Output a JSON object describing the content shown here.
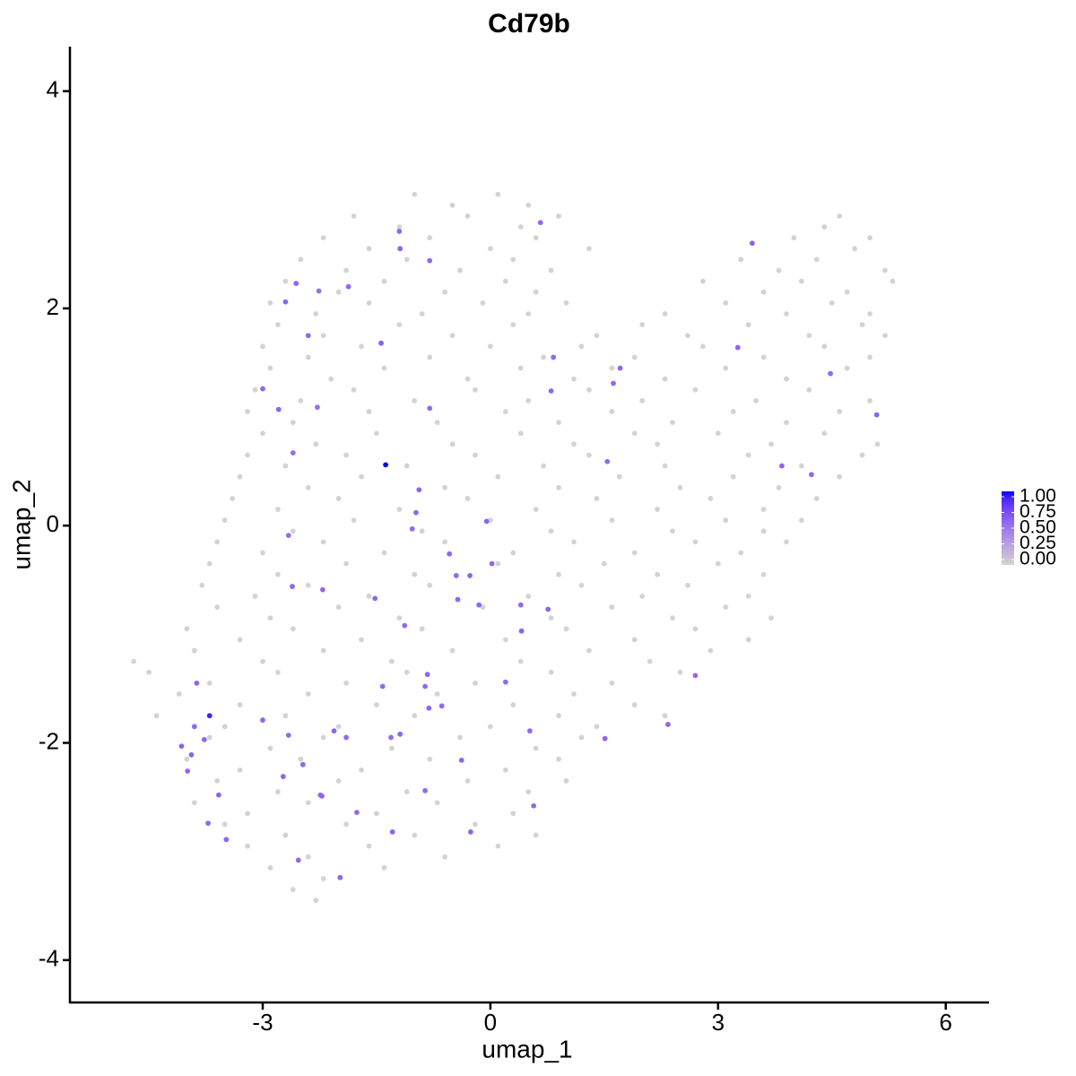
{
  "chart_data": {
    "type": "scatter",
    "title": "Cd79b",
    "x_label": "umap_1",
    "y_label": "umap_2",
    "xlim": [
      -5.54,
      6.57
    ],
    "ylim": [
      -4.39,
      4.41
    ],
    "xticks": [
      -3,
      0,
      3,
      6
    ],
    "yticks": [
      -4,
      -2,
      0,
      2,
      4
    ],
    "colors": [
      "#d3d3d3",
      "#0000ff"
    ],
    "colorlim": [
      0,
      1
    ],
    "colorbar_ticks": [
      {
        "value": 0,
        "label": "0.00"
      },
      {
        "value": 0.25,
        "label": "0.25"
      },
      {
        "value": 0.5,
        "label": "0.50"
      },
      {
        "value": 0.75,
        "label": "0.75"
      },
      {
        "value": 1,
        "label": "1.00"
      }
    ],
    "legend": "right",
    "grid": false,
    "x": [
      -1.0,
      -0.5,
      0.1,
      0.5,
      -1.8,
      -1.2,
      -0.3,
      0.4,
      0.9,
      4.4,
      4.6,
      -2.2,
      -1.6,
      -0.8,
      0,
      0.6,
      1.3,
      4.0,
      4.8,
      5.0,
      -2.5,
      -1.9,
      -1.1,
      -0.4,
      0.3,
      0.8,
      3.3,
      3.8,
      4.3,
      5.2,
      -2.7,
      -2.0,
      -1.4,
      -0.6,
      0.2,
      0.6,
      2.8,
      3.6,
      4.1,
      4.7,
      5.3,
      -2.9,
      -2.3,
      -1.6,
      -0.9,
      -0.1,
      0.5,
      1.0,
      2.3,
      3.1,
      3.9,
      4.5,
      5.0,
      -2.8,
      -2.2,
      -1.2,
      -0.5,
      0.3,
      1.4,
      2.0,
      2.6,
      3.4,
      4.2,
      4.9,
      5.2,
      -3.0,
      -2.4,
      -1.7,
      -0.8,
      0,
      0.7,
      1.2,
      1.9,
      2.8,
      3.6,
      4.4,
      5.0,
      -2.9,
      -2.1,
      -1.4,
      -0.3,
      0.4,
      1.1,
      1.6,
      2.3,
      3.1,
      3.9,
      4.7,
      -3.1,
      -2.5,
      -1.8,
      -1.0,
      -0.2,
      0.5,
      1.3,
      2.0,
      2.7,
      3.5,
      4.2,
      5.0,
      -3.2,
      -2.6,
      -1.6,
      -0.7,
      0.2,
      0.9,
      1.6,
      2.4,
      3.2,
      3.9,
      4.6,
      -3.0,
      -2.3,
      -1.5,
      -0.5,
      0.4,
      1.1,
      1.9,
      2.2,
      3.0,
      3.7,
      4.4,
      5.1,
      -3.2,
      -2.7,
      -1.9,
      -1.1,
      -0.2,
      0.7,
      1.3,
      2.3,
      3.4,
      4.1,
      4.9,
      -3.3,
      -2.4,
      -1.7,
      -0.6,
      0.1,
      0.9,
      1.7,
      2.5,
      3.2,
      3.8,
      4.6,
      -3.4,
      -2.8,
      -2.0,
      -1.2,
      -0.3,
      0.6,
      1.4,
      2.2,
      2.9,
      3.6,
      4.3,
      -3.5,
      -2.6,
      -1.8,
      -0.9,
      0,
      0.8,
      1.6,
      2.4,
      3.1,
      3.6,
      4.1,
      -3.6,
      -3.0,
      -2.2,
      -1.4,
      -0.6,
      0.3,
      1.1,
      1.9,
      2.7,
      3.3,
      3.9,
      -3.7,
      -2.8,
      -1.9,
      -1.0,
      0.1,
      0.9,
      1.5,
      2.2,
      3.0,
      3.6,
      -3.8,
      -3.1,
      -2.4,
      -1.6,
      -0.8,
      0.5,
      1.2,
      2.0,
      2.6,
      3.4,
      -3.6,
      -2.9,
      -2.0,
      -1.2,
      -0.1,
      0.8,
      1.6,
      2.4,
      3.1,
      3.7,
      -4.0,
      -3.3,
      -2.6,
      -1.7,
      -0.9,
      0.2,
      1.0,
      1.9,
      2.7,
      3.4,
      -4.7,
      -3.9,
      -3.0,
      -2.2,
      -1.3,
      -0.5,
      0.4,
      1.3,
      2.1,
      2.9,
      -4.5,
      -3.7,
      -2.8,
      -1.9,
      -1.1,
      -0.2,
      0.8,
      1.6,
      2.5,
      -4.1,
      -3.3,
      -2.4,
      -1.5,
      -0.7,
      0.3,
      1.1,
      1.9,
      -4.4,
      -3.5,
      -2.7,
      -2.0,
      -1.0,
      0,
      0.9,
      1.4,
      2.3,
      -3.7,
      -2.9,
      -2.2,
      -1.3,
      -0.4,
      0.6,
      1.2,
      -4.0,
      -3.3,
      -2.5,
      -1.7,
      -0.8,
      0.2,
      0.9,
      -3.6,
      -2.8,
      -2.0,
      -1.1,
      -0.3,
      0.5,
      1.0,
      -3.9,
      -3.2,
      -2.4,
      -1.5,
      -0.7,
      0.3,
      -3.5,
      -2.7,
      -1.9,
      -1.0,
      -0.2,
      0.6,
      -3.2,
      -2.4,
      -1.6,
      -0.6,
      0.1,
      -2.9,
      -2.2,
      -1.4,
      -2.6,
      -2.3,
      -1.2,
      -1.19,
      -0.8,
      -2.56,
      -2.26,
      -1.87,
      -2.7,
      -2.4,
      -1.44,
      0.83,
      1.71,
      1.62,
      0.8,
      -3.0,
      -2.79,
      -2.28,
      -0.8,
      -2.6,
      -1.38,
      1.54,
      3.84,
      4.23,
      5.09,
      4.48,
      3.26,
      3.45,
      0.66,
      -0.94,
      -0.98,
      -1.03,
      -0.05,
      0.02,
      -0.54,
      -0.45,
      -0.27,
      -0.43,
      -0.15,
      0.4,
      0.76,
      0.41,
      -1.52,
      -1.13,
      -2.61,
      -2.21,
      -2.66,
      2.7,
      2.34,
      0.2,
      1.51,
      0.52,
      -0.38,
      -0.64,
      -0.83,
      -0.86,
      -0.81,
      -1.42,
      -1.19,
      -1.31,
      -2.06,
      -1.9,
      -3.0,
      -2.66,
      -3.7,
      -3.87,
      -3.9,
      -3.94,
      -4.07,
      -3.77,
      -3.99,
      -3.58,
      -3.72,
      -3.48,
      -2.47,
      -2.73,
      -2.24,
      -2.22,
      -1.76,
      -1.98,
      -2.53,
      -1.29,
      -0.86,
      -0.26,
      0.57
    ],
    "y": [
      3.05,
      2.95,
      3.05,
      2.95,
      2.85,
      2.75,
      2.85,
      2.75,
      2.85,
      2.75,
      2.85,
      2.65,
      2.55,
      2.65,
      2.55,
      2.65,
      2.55,
      2.65,
      2.55,
      2.65,
      2.45,
      2.35,
      2.45,
      2.35,
      2.45,
      2.35,
      2.45,
      2.35,
      2.45,
      2.35,
      2.25,
      2.15,
      2.25,
      2.15,
      2.25,
      2.15,
      2.25,
      2.15,
      2.25,
      2.15,
      2.25,
      2.05,
      1.95,
      2.05,
      1.95,
      2.05,
      1.95,
      2.05,
      1.95,
      2.05,
      1.95,
      2.05,
      1.95,
      1.85,
      1.75,
      1.85,
      1.75,
      1.85,
      1.75,
      1.85,
      1.75,
      1.85,
      1.75,
      1.85,
      1.75,
      1.65,
      1.55,
      1.65,
      1.55,
      1.65,
      1.55,
      1.65,
      1.55,
      1.65,
      1.55,
      1.65,
      1.55,
      1.45,
      1.35,
      1.45,
      1.35,
      1.45,
      1.35,
      1.45,
      1.35,
      1.45,
      1.35,
      1.45,
      1.25,
      1.15,
      1.25,
      1.15,
      1.25,
      1.15,
      1.25,
      1.15,
      1.25,
      1.15,
      1.25,
      1.15,
      1.05,
      0.95,
      1.05,
      0.95,
      1.05,
      0.95,
      1.05,
      0.95,
      1.05,
      0.95,
      1.05,
      0.85,
      0.75,
      0.85,
      0.75,
      0.85,
      0.75,
      0.85,
      0.75,
      0.85,
      0.75,
      0.85,
      0.75,
      0.65,
      0.55,
      0.65,
      0.55,
      0.65,
      0.55,
      0.65,
      0.55,
      0.65,
      0.55,
      0.65,
      0.45,
      0.35,
      0.45,
      0.35,
      0.45,
      0.35,
      0.45,
      0.35,
      0.45,
      0.35,
      0.45,
      0.25,
      0.15,
      0.25,
      0.15,
      0.25,
      0.15,
      0.25,
      0.15,
      0.25,
      0.15,
      0.25,
      0.05,
      -0.05,
      0.05,
      -0.05,
      0.05,
      -0.05,
      0.05,
      -0.05,
      0.05,
      -0.05,
      0.05,
      -0.15,
      -0.25,
      -0.15,
      -0.25,
      -0.15,
      -0.25,
      -0.15,
      -0.25,
      -0.15,
      -0.25,
      -0.15,
      -0.35,
      -0.45,
      -0.35,
      -0.45,
      -0.35,
      -0.45,
      -0.35,
      -0.45,
      -0.35,
      -0.45,
      -0.55,
      -0.65,
      -0.55,
      -0.65,
      -0.55,
      -0.65,
      -0.55,
      -0.65,
      -0.55,
      -0.65,
      -0.75,
      -0.85,
      -0.75,
      -0.85,
      -0.75,
      -0.85,
      -0.75,
      -0.85,
      -0.75,
      -0.85,
      -0.95,
      -1.05,
      -0.95,
      -1.05,
      -0.95,
      -1.05,
      -0.95,
      -1.05,
      -0.95,
      -1.05,
      -1.25,
      -1.15,
      -1.25,
      -1.15,
      -1.25,
      -1.15,
      -1.25,
      -1.15,
      -1.25,
      -1.15,
      -1.35,
      -1.45,
      -1.35,
      -1.45,
      -1.35,
      -1.45,
      -1.35,
      -1.45,
      -1.35,
      -1.55,
      -1.65,
      -1.55,
      -1.65,
      -1.55,
      -1.65,
      -1.55,
      -1.65,
      -1.75,
      -1.85,
      -1.75,
      -1.85,
      -1.75,
      -1.85,
      -1.75,
      -1.85,
      -1.75,
      -1.95,
      -2.05,
      -1.95,
      -2.05,
      -1.95,
      -2.05,
      -1.95,
      -2.15,
      -2.25,
      -2.15,
      -2.25,
      -2.15,
      -2.25,
      -2.15,
      -2.35,
      -2.45,
      -2.35,
      -2.45,
      -2.35,
      -2.45,
      -2.35,
      -2.55,
      -2.65,
      -2.55,
      -2.65,
      -2.55,
      -2.65,
      -2.75,
      -2.85,
      -2.75,
      -2.85,
      -2.75,
      -2.85,
      -2.95,
      -3.05,
      -2.95,
      -3.05,
      -2.95,
      -3.15,
      -3.25,
      -3.15,
      -3.35,
      -3.45,
      2.71,
      2.55,
      2.44,
      2.23,
      2.16,
      2.2,
      2.06,
      1.75,
      1.68,
      1.55,
      1.45,
      1.31,
      1.24,
      1.26,
      1.07,
      1.09,
      1.08,
      0.67,
      0.56,
      0.59,
      0.55,
      0.47,
      1.02,
      1.4,
      1.64,
      2.6,
      2.79,
      0.33,
      0.12,
      -0.03,
      0.04,
      -0.35,
      -0.26,
      -0.46,
      -0.46,
      -0.68,
      -0.73,
      -0.73,
      -0.77,
      -0.97,
      -0.67,
      -0.92,
      -0.56,
      -0.59,
      -0.09,
      -1.38,
      -1.83,
      -1.44,
      -1.96,
      -1.89,
      -2.16,
      -1.66,
      -1.37,
      -1.48,
      -1.68,
      -1.48,
      -1.92,
      -1.95,
      -1.89,
      -1.95,
      -1.79,
      -1.93,
      -1.75,
      -1.45,
      -1.85,
      -2.11,
      -2.03,
      -1.97,
      -2.26,
      -2.48,
      -2.74,
      -2.89,
      -2.2,
      -2.31,
      -2.48,
      -2.49,
      -2.64,
      -3.24,
      -3.08,
      -2.82,
      -2.44,
      -2.82,
      -2.58
    ],
    "values": [
      0,
      0,
      0,
      0,
      0,
      0,
      0,
      0,
      0,
      0,
      0,
      0,
      0,
      0,
      0,
      0,
      0,
      0,
      0,
      0,
      0,
      0,
      0,
      0,
      0,
      0,
      0,
      0,
      0,
      0,
      0,
      0,
      0,
      0,
      0,
      0,
      0,
      0,
      0,
      0,
      0,
      0,
      0,
      0,
      0,
      0,
      0,
      0,
      0,
      0,
      0,
      0,
      0,
      0,
      0,
      0,
      0,
      0,
      0,
      0,
      0,
      0,
      0,
      0,
      0,
      0,
      0,
      0,
      0,
      0,
      0,
      0,
      0,
      0,
      0,
      0,
      0,
      0,
      0,
      0,
      0,
      0,
      0,
      0,
      0,
      0,
      0,
      0,
      0,
      0,
      0,
      0,
      0,
      0,
      0,
      0,
      0,
      0,
      0,
      0,
      0,
      0,
      0,
      0,
      0,
      0,
      0,
      0,
      0,
      0,
      0,
      0,
      0,
      0,
      0,
      0,
      0,
      0,
      0,
      0,
      0,
      0,
      0,
      0,
      0,
      0,
      0,
      0,
      0,
      0,
      0,
      0,
      0,
      0,
      0,
      0,
      0,
      0,
      0,
      0,
      0,
      0,
      0,
      0,
      0,
      0,
      0,
      0,
      0,
      0,
      0,
      0,
      0,
      0,
      0,
      0,
      0,
      0,
      0,
      0,
      0,
      0,
      0,
      0,
      0,
      0,
      0,
      0,
      0,
      0,
      0,
      0,
      0,
      0,
      0,
      0,
      0,
      0,
      0,
      0,
      0,
      0,
      0,
      0,
      0,
      0,
      0,
      0,
      0,
      0,
      0,
      0,
      0,
      0,
      0,
      0,
      0,
      0,
      0,
      0,
      0,
      0,
      0,
      0,
      0,
      0,
      0,
      0,
      0,
      0,
      0,
      0,
      0,
      0,
      0,
      0,
      0,
      0,
      0,
      0,
      0,
      0,
      0,
      0,
      0,
      0,
      0,
      0,
      0,
      0,
      0,
      0,
      0,
      0,
      0,
      0,
      0,
      0,
      0,
      0,
      0,
      0,
      0,
      0,
      0,
      0,
      0,
      0,
      0,
      0,
      0,
      0,
      0,
      0,
      0,
      0,
      0,
      0,
      0,
      0,
      0,
      0,
      0,
      0,
      0,
      0,
      0,
      0,
      0,
      0,
      0,
      0,
      0,
      0,
      0,
      0,
      0,
      0,
      0,
      0,
      0,
      0,
      0,
      0,
      0,
      0,
      0,
      0,
      0,
      0,
      0,
      0,
      0,
      0,
      0,
      0,
      0,
      0.58,
      0.6,
      0.58,
      0.6,
      0.55,
      0.58,
      0.6,
      0.58,
      0.62,
      0.58,
      0.6,
      0.58,
      0.6,
      0.58,
      0.6,
      0.55,
      0.58,
      0.55,
      1,
      0.58,
      0.6,
      0.58,
      0.6,
      0.58,
      0.6,
      0.62,
      0.58,
      0.6,
      0.58,
      0.58,
      0.6,
      0.58,
      0.6,
      0.58,
      0.6,
      0.58,
      0.6,
      0.58,
      0.6,
      0.62,
      0.6,
      0.58,
      0.6,
      0.58,
      0.55,
      0.58,
      0.6,
      0.58,
      0.6,
      0.58,
      0.6,
      0.58,
      0.6,
      0.58,
      0.6,
      0.58,
      0.6,
      0.58,
      0.6,
      0.58,
      0.6,
      0.58,
      0.92,
      0.6,
      0.58,
      0.6,
      0.62,
      0.6,
      0.58,
      0.6,
      0.58,
      0.6,
      0.58,
      0.6,
      0.58,
      0.6,
      0.58,
      0.6,
      0.58,
      0.6,
      0.58,
      0.6,
      0.58
    ]
  }
}
